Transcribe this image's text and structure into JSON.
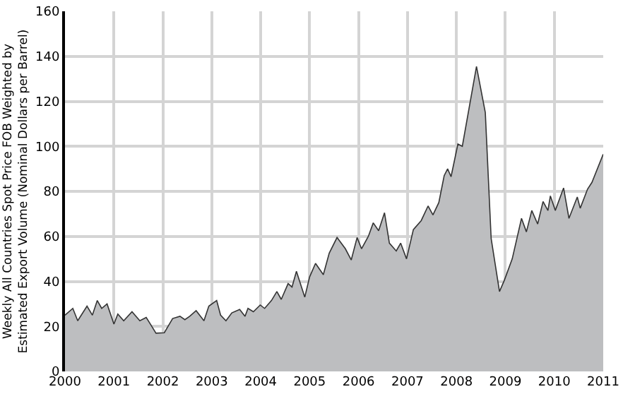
{
  "chart_data": {
    "type": "area",
    "ylabel": "Weekly All Countries Spot Price FOB Weighted by\nEstimated Export Volume (Nominal Dollars per Barrel)",
    "x": [
      2000,
      2000.16,
      2000.26,
      2000.45,
      2000.56,
      2000.66,
      2000.75,
      2000.86,
      2001,
      2001.08,
      2001.2,
      2001.37,
      2001.53,
      2001.66,
      2001.76,
      2001.86,
      2002.03,
      2002.2,
      2002.35,
      2002.45,
      2002.55,
      2002.68,
      2002.84,
      2002.94,
      2003.1,
      2003.18,
      2003.29,
      2003.41,
      2003.57,
      2003.68,
      2003.74,
      2003.85,
      2003.99,
      2004.08,
      2004.22,
      2004.33,
      2004.42,
      2004.56,
      2004.64,
      2004.73,
      2004.9,
      2005,
      2005.12,
      2005.28,
      2005.4,
      2005.56,
      2005.73,
      2005.85,
      2005.97,
      2006.06,
      2006.2,
      2006.3,
      2006.41,
      2006.53,
      2006.63,
      2006.77,
      2006.86,
      2006.98,
      2007.12,
      2007.28,
      2007.42,
      2007.52,
      2007.64,
      2007.75,
      2007.82,
      2007.89,
      2008.03,
      2008.12,
      2008.41,
      2008.59,
      2008.71,
      2008.88,
      2008.98,
      2009.14,
      2009.33,
      2009.43,
      2009.54,
      2009.66,
      2009.77,
      2009.87,
      2009.92,
      2010.02,
      2010.19,
      2010.3,
      2010.47,
      2010.53,
      2010.68,
      2010.77,
      2011
    ],
    "series": [
      {
        "color": "#bdbec0",
        "values": [
          25,
          28,
          22.5,
          29,
          25,
          31.5,
          28,
          30,
          21,
          25.5,
          22.5,
          26.5,
          22.5,
          24,
          20.5,
          17,
          17.2,
          23.5,
          24.5,
          23,
          24.5,
          27,
          22.5,
          29,
          31.5,
          25,
          22.5,
          26,
          27.5,
          24.5,
          28,
          26.5,
          29.5,
          28,
          31.5,
          35.5,
          32,
          39,
          37.5,
          44.5,
          33,
          42,
          48,
          43,
          52.5,
          59.5,
          54.5,
          49.5,
          59.5,
          54.5,
          60,
          66,
          62.5,
          70.5,
          57,
          53.5,
          57,
          50,
          63,
          67,
          73.5,
          69.5,
          75,
          87,
          90,
          86.5,
          101,
          100,
          135.5,
          115,
          59,
          35.5,
          40.5,
          50,
          68,
          62,
          71.5,
          65.5,
          75.5,
          71.5,
          78,
          71.5,
          81.5,
          68,
          77.5,
          72.5,
          81,
          84,
          96.5
        ]
      }
    ],
    "xlim": [
      2000,
      2011
    ],
    "xticks": [
      2000,
      2001,
      2002,
      2003,
      2004,
      2005,
      2006,
      2007,
      2008,
      2009,
      2010,
      2011
    ],
    "ylim": [
      0,
      160
    ],
    "yticks": [
      0,
      20,
      40,
      60,
      80,
      100,
      120,
      140,
      160
    ],
    "grid": true
  }
}
